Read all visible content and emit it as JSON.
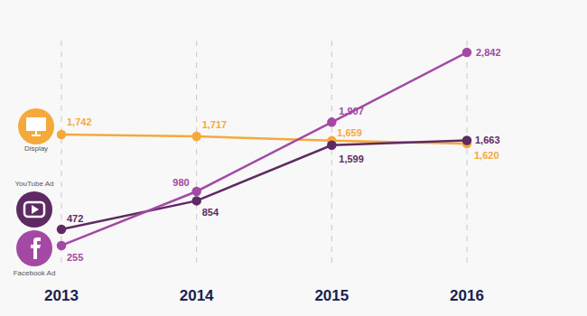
{
  "chart_data": {
    "type": "line",
    "categories": [
      "2013",
      "2014",
      "2015",
      "2016"
    ],
    "series": [
      {
        "name": "Display",
        "color": "#f5a93b",
        "values": [
          1742,
          1717,
          1659,
          1620
        ],
        "value_labels": [
          "1,742",
          "1,717",
          "1,659",
          "1,620"
        ]
      },
      {
        "name": "YouTube Ad",
        "color": "#5e2a63",
        "values": [
          472,
          854,
          1599,
          1663
        ],
        "value_labels": [
          "472",
          "854",
          "1,599",
          "1,663"
        ]
      },
      {
        "name": "Facebook Ad",
        "color": "#a349a4",
        "values": [
          255,
          980,
          1907,
          2842
        ],
        "value_labels": [
          "255",
          "980",
          "1,907",
          "2,842"
        ]
      }
    ],
    "ylim": [
      0,
      3000
    ],
    "grid": true,
    "data_labels": true,
    "tick_labels": "x",
    "marker": "circle"
  }
}
